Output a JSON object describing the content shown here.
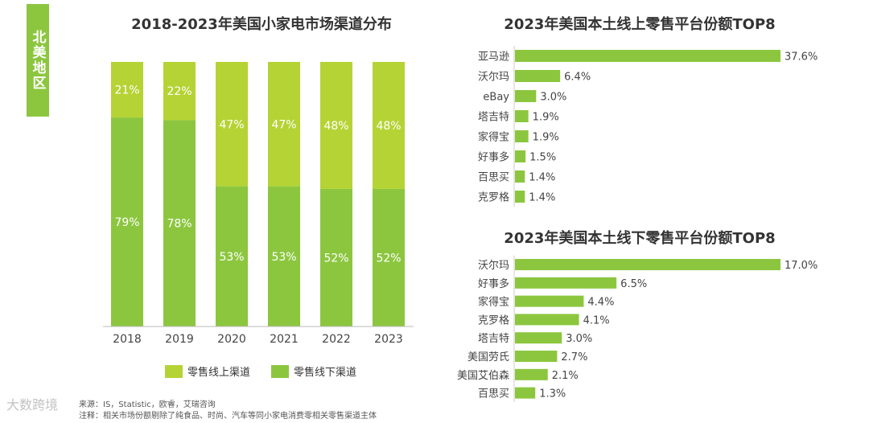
{
  "region_tag": "北美地区",
  "colors": {
    "online": "#b5d334",
    "offline": "#8cc63f",
    "hbar": "#8cc63f"
  },
  "legend": {
    "online": "零售线上渠道",
    "offline": "零售线下渠道"
  },
  "source_line1": "来源：IS，Statistic，欧睿，艾瑞咨询",
  "source_line2": "注释：相关市场份额剔除了纯食品、时尚、汽车等同小家电消费零相关零售渠道主体",
  "watermark": "大数跨境",
  "chart_data": [
    {
      "type": "bar",
      "stacked": true,
      "title": "2018-2023年美国小家电市场渠道分布",
      "categories": [
        "2018",
        "2019",
        "2020",
        "2021",
        "2022",
        "2023"
      ],
      "series": [
        {
          "name": "零售线下渠道",
          "values": [
            79,
            78,
            53,
            53,
            52,
            52
          ],
          "labels": [
            "79%",
            "78%",
            "53%",
            "53%",
            "52%",
            "52%"
          ]
        },
        {
          "name": "零售线上渠道",
          "values": [
            21,
            22,
            47,
            47,
            48,
            48
          ],
          "labels": [
            "21%",
            "22%",
            "47%",
            "47%",
            "48%",
            "48%"
          ]
        }
      ],
      "ylim": [
        0,
        100
      ]
    },
    {
      "type": "bar",
      "orientation": "horizontal",
      "title": "2023年美国本土线上零售平台份额TOP8",
      "categories": [
        "亚马逊",
        "沃尔玛",
        "eBay",
        "塔吉特",
        "家得宝",
        "好事多",
        "百思买",
        "克罗格"
      ],
      "values": [
        37.6,
        6.4,
        3.0,
        1.9,
        1.9,
        1.5,
        1.4,
        1.4
      ],
      "labels": [
        "37.6%",
        "6.4%",
        "3.0%",
        "1.9%",
        "1.9%",
        "1.5%",
        "1.4%",
        "1.4%"
      ],
      "xlim": [
        0,
        37.6
      ]
    },
    {
      "type": "bar",
      "orientation": "horizontal",
      "title": "2023年美国本土线下零售平台份额TOP8",
      "categories": [
        "沃尔玛",
        "好事多",
        "家得宝",
        "克罗格",
        "塔吉特",
        "美国劳氏",
        "美国艾伯森",
        "百思买"
      ],
      "values": [
        17.0,
        6.5,
        4.4,
        4.1,
        3.0,
        2.7,
        2.1,
        1.3
      ],
      "labels": [
        "17.0%",
        "6.5%",
        "4.4%",
        "4.1%",
        "3.0%",
        "2.7%",
        "2.1%",
        "1.3%"
      ],
      "xlim": [
        0,
        17.0
      ]
    }
  ]
}
